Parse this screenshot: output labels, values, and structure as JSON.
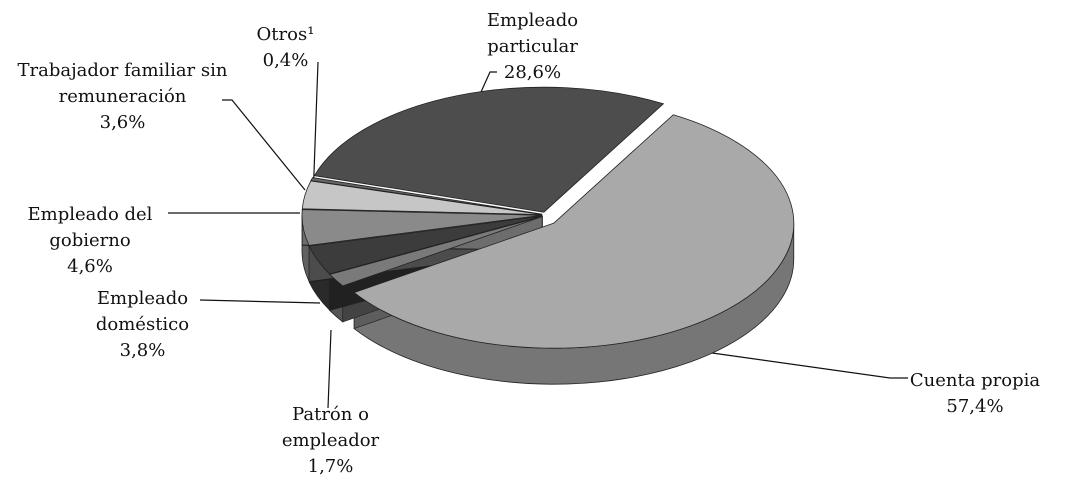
{
  "chart_data": {
    "type": "pie",
    "three_d": true,
    "categories": [
      "Empleado particular",
      "Cuenta propia",
      "Patrón o empleador",
      "Empleado doméstico",
      "Empleado del gobierno",
      "Trabajador familiar sin remuneración",
      "Otros¹"
    ],
    "values": [
      28.6,
      57.4,
      1.7,
      3.8,
      4.6,
      3.6,
      0.4
    ],
    "value_labels": [
      "28,6%",
      "57,4%",
      "1,7%",
      "3,8%",
      "4,6%",
      "3,6%",
      "0,4%"
    ],
    "colors": [
      "#4d4d4d",
      "#a9a9a9",
      "#7a7a7a",
      "#3c3c3c",
      "#8a8a8a",
      "#c6c6c6",
      "#666666"
    ]
  }
}
